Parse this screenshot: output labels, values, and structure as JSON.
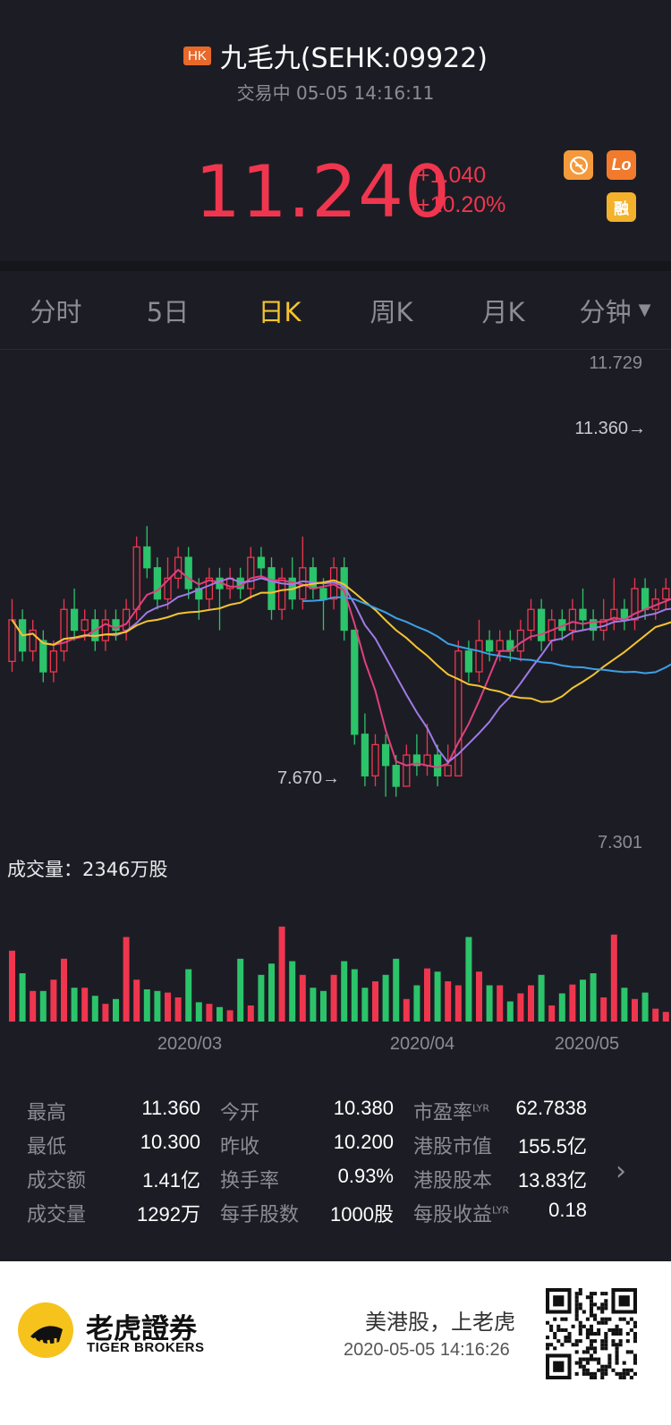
{
  "header": {
    "market_badge": "HK",
    "title": "九毛九(SEHK:09922)",
    "status": "交易中 05-05 14:16:11",
    "price": "11.240",
    "change_abs": "+1.040",
    "change_pct": "+10.20%",
    "icons": [
      "margin-icon",
      "lo-icon",
      "rong-icon"
    ],
    "icon_lo_label": "Lo",
    "icon_rong_label": "融"
  },
  "tabs": [
    {
      "label": "分时",
      "active": false
    },
    {
      "label": "5日",
      "active": false
    },
    {
      "label": "日K",
      "active": true
    },
    {
      "label": "周K",
      "active": false
    },
    {
      "label": "月K",
      "active": false
    },
    {
      "label": "分钟",
      "active": false,
      "dropdown": true
    }
  ],
  "chart": {
    "y_top_label": "11.729",
    "high_marker": "11.360→",
    "low_marker": "7.670→",
    "y_bottom_label": "7.301",
    "volume_label": "成交量：2346万股",
    "x_labels": [
      "2020/03",
      "2020/04",
      "2020/05"
    ]
  },
  "chart_data": {
    "type": "candlestick",
    "ylim": [
      7.301,
      11.729
    ],
    "colors": {
      "up": "#f0364f",
      "down": "#2bc46a",
      "ma5": "#e0407f",
      "ma10": "#a07ae8",
      "ma20": "#f4c430",
      "ma60": "#3da0e8"
    }
  },
  "stats": {
    "rows": [
      [
        {
          "label": "最高",
          "value": "11.360"
        },
        {
          "label": "今开",
          "value": "10.380"
        },
        {
          "label": "市盈率",
          "lyr": "LYR",
          "value": "62.7838"
        }
      ],
      [
        {
          "label": "最低",
          "value": "10.300"
        },
        {
          "label": "昨收",
          "value": "10.200"
        },
        {
          "label": "港股市值",
          "value": "155.5亿"
        }
      ],
      [
        {
          "label": "成交额",
          "value": "1.41亿"
        },
        {
          "label": "换手率",
          "value": "0.93%"
        },
        {
          "label": "港股股本",
          "value": "13.83亿"
        }
      ],
      [
        {
          "label": "成交量",
          "value": "1292万"
        },
        {
          "label": "每手股数",
          "value": "1000股"
        },
        {
          "label": "每股收益",
          "lyr": "LYR",
          "value": "0.18"
        }
      ]
    ]
  },
  "footer": {
    "brand_cn": "老虎證券",
    "brand_en": "TIGER BROKERS",
    "slogan": "美港股，上老虎",
    "timestamp": "2020-05-05 14:16:26"
  }
}
